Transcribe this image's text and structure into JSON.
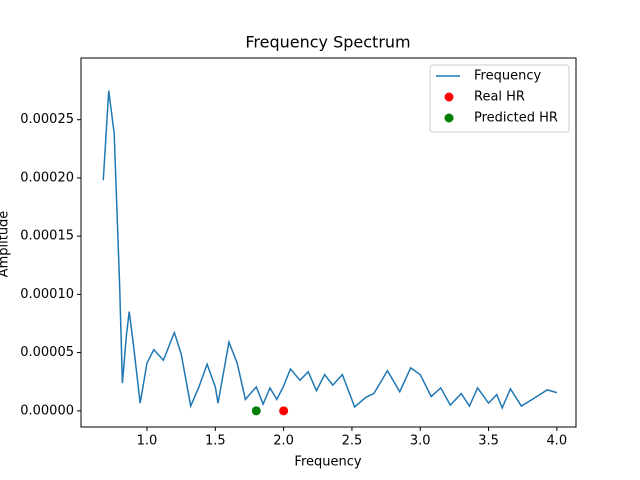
{
  "chart_data": {
    "type": "line",
    "title": "Frequency Spectrum",
    "xlabel": "Frequency",
    "ylabel": "Amplitude",
    "xlim": [
      0.517,
      4.14
    ],
    "ylim": [
      -1.39e-05,
      0.000303
    ],
    "xticks": [
      {
        "value": 1,
        "label": "1.0"
      },
      1.5,
      {
        "value": 2,
        "label": "2.0"
      },
      2.5,
      {
        "value": 3,
        "label": "3.0"
      },
      3.5,
      {
        "value": 4,
        "label": "4.0"
      }
    ],
    "yticks": [
      {
        "value": 0,
        "label": "0.00000"
      },
      {
        "value": 5e-05,
        "label": "0.00005"
      },
      {
        "value": 0.0001,
        "label": "0.00010"
      },
      {
        "value": 0.00015,
        "label": "0.00015"
      },
      {
        "value": 0.0002,
        "label": "0.00020"
      },
      {
        "value": 0.00025,
        "label": "0.00025"
      }
    ],
    "legend": "upper right",
    "series": [
      {
        "name": "Frequency",
        "type": "line",
        "color": "#1f77b4",
        "x": [
          0.68,
          0.72,
          0.76,
          0.8,
          0.82,
          0.85,
          0.87,
          0.9,
          0.95,
          1.0,
          1.05,
          1.12,
          1.2,
          1.25,
          1.32,
          1.38,
          1.44,
          1.5,
          1.52,
          1.6,
          1.66,
          1.72,
          1.8,
          1.85,
          1.9,
          1.95,
          2.0,
          2.05,
          2.12,
          2.18,
          2.24,
          2.3,
          2.36,
          2.43,
          2.52,
          2.6,
          2.66,
          2.76,
          2.85,
          2.93,
          3.0,
          3.08,
          3.15,
          3.22,
          3.3,
          3.36,
          3.42,
          3.5,
          3.56,
          3.6,
          3.66,
          3.74,
          3.82,
          3.93,
          4.0
        ],
        "values": [
          0.000198,
          0.000275,
          0.000238,
          0.000107,
          2.38e-05,
          6.56e-05,
          8.52e-05,
          5.74e-05,
          6.6e-06,
          4.1e-05,
          5.25e-05,
          4.34e-05,
          6.72e-05,
          4.9e-05,
          4.1e-06,
          2.05e-05,
          4e-05,
          2.05e-05,
          6.6e-06,
          5.9e-05,
          4.1e-05,
          9.8e-06,
          2.05e-05,
          5.7e-06,
          1.97e-05,
          9.8e-06,
          2.13e-05,
          3.6e-05,
          2.62e-05,
          3.36e-05,
          1.72e-05,
          3.11e-05,
          2.21e-05,
          3.11e-05,
          3.3e-06,
          1.15e-05,
          1.48e-05,
          3.44e-05,
          1.64e-05,
          3.69e-05,
          3.11e-05,
          1.23e-05,
          1.97e-05,
          4.9e-06,
          1.48e-05,
          4.1e-06,
          1.97e-05,
          6.6e-06,
          1.39e-05,
          2.5e-06,
          1.89e-05,
          4.1e-06,
          9.8e-06,
          1.8e-05,
          1.56e-05
        ]
      },
      {
        "name": "Real HR",
        "type": "scatter",
        "color": "red",
        "x": [
          2.0
        ],
        "values": [
          0
        ]
      },
      {
        "name": "Predicted HR",
        "type": "scatter",
        "color": "green",
        "x": [
          1.8
        ],
        "values": [
          0
        ]
      }
    ]
  }
}
